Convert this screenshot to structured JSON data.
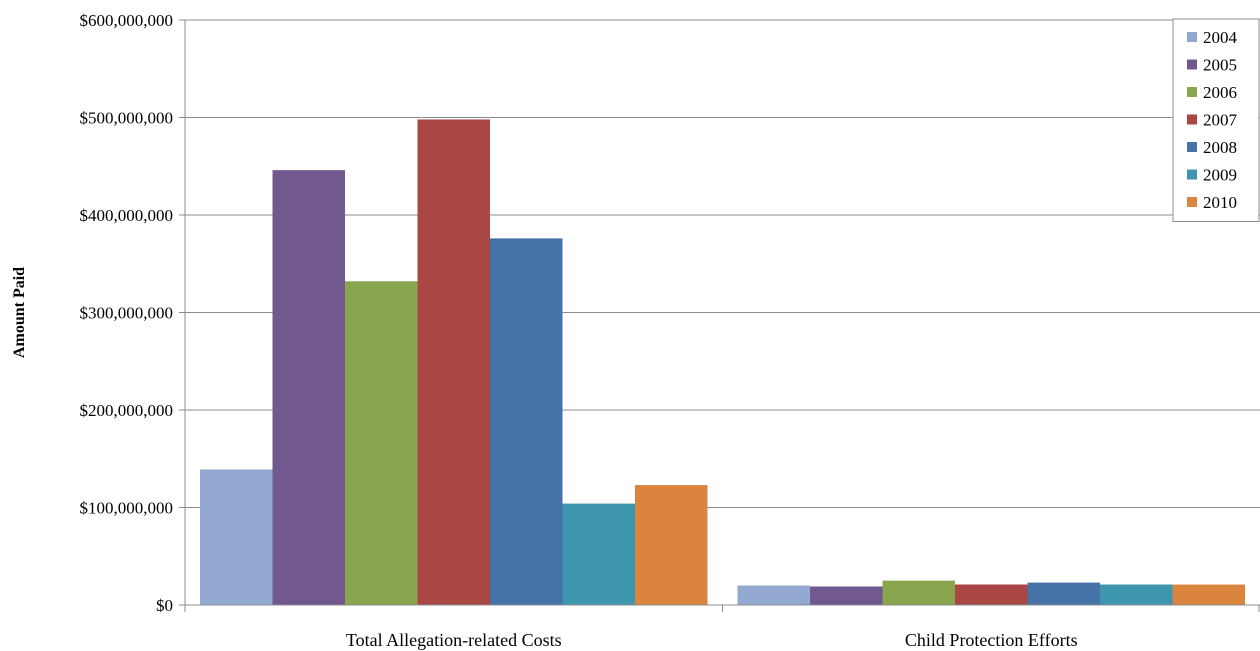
{
  "chart_data": {
    "type": "bar",
    "categories": [
      "Total Allegation-related Costs",
      "Child Protection Efforts"
    ],
    "series": [
      {
        "name": "2004",
        "color": "#94a9d2",
        "values": [
          139000000,
          20000000
        ]
      },
      {
        "name": "2005",
        "color": "#71588f",
        "values": [
          446000000,
          19000000
        ]
      },
      {
        "name": "2006",
        "color": "#89a54e",
        "values": [
          332000000,
          25000000
        ]
      },
      {
        "name": "2007",
        "color": "#aa4643",
        "values": [
          498000000,
          21000000
        ]
      },
      {
        "name": "2008",
        "color": "#4572a7",
        "values": [
          376000000,
          23000000
        ]
      },
      {
        "name": "2009",
        "color": "#3d96ae",
        "values": [
          104000000,
          21000000
        ]
      },
      {
        "name": "2010",
        "color": "#db843d",
        "values": [
          123000000,
          21000000
        ]
      }
    ],
    "y_ticks": [
      "$0",
      "$100,000,000",
      "$200,000,000",
      "$300,000,000",
      "$400,000,000",
      "$500,000,000",
      "$600,000,000"
    ],
    "y_tick_values": [
      0,
      100000000,
      200000000,
      300000000,
      400000000,
      500000000,
      600000000
    ],
    "title": "",
    "xlabel": "",
    "ylabel": "Amount Paid",
    "ylim": [
      0,
      600000000
    ],
    "grid": true,
    "legend": "top-right"
  }
}
